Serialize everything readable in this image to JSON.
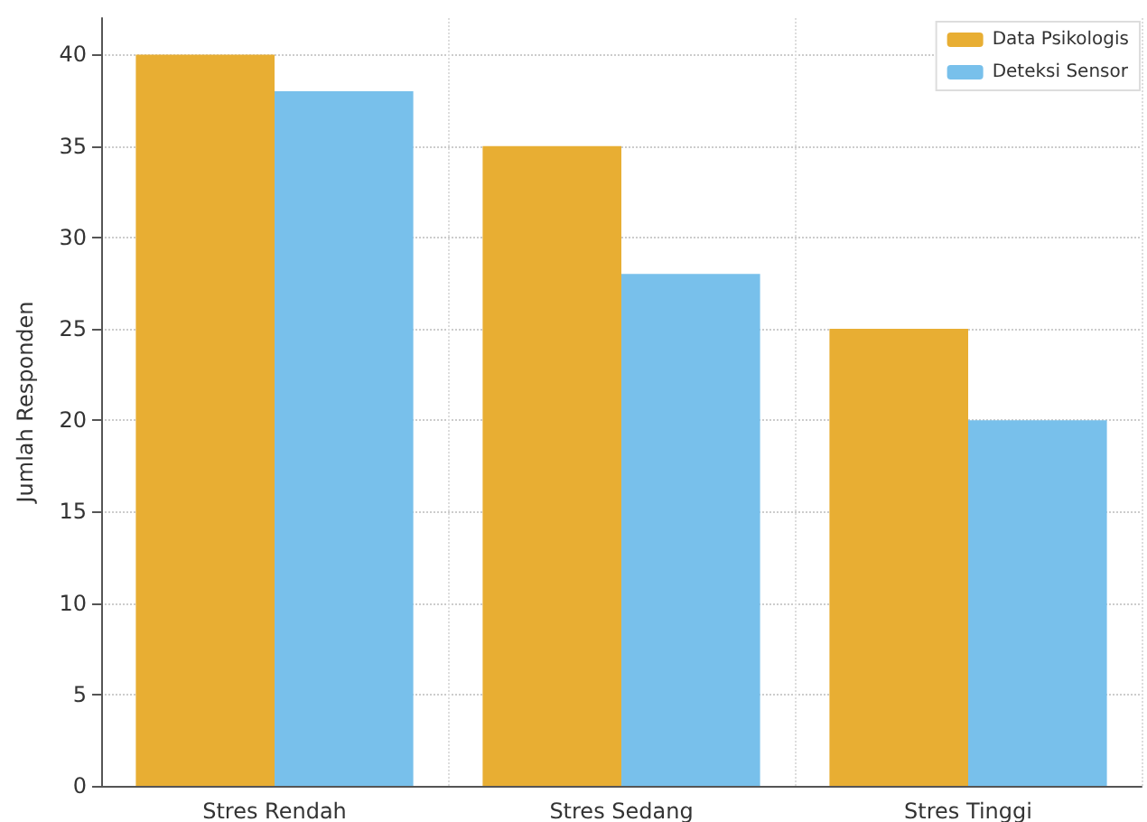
{
  "chart_data": {
    "type": "bar",
    "ylabel": "Jumlah Responden",
    "categories": [
      "Stres Rendah",
      "Stres Sedang",
      "Stres Tinggi"
    ],
    "series": [
      {
        "name": "Data Psikologis",
        "color": "#e8ae33",
        "values": [
          40,
          35,
          25
        ]
      },
      {
        "name": "Deteksi Sensor",
        "color": "#78c0eb",
        "values": [
          38,
          28,
          20
        ]
      }
    ],
    "ylim": [
      0,
      42
    ],
    "yticks": [
      0,
      5,
      10,
      15,
      20,
      25,
      30,
      35,
      40
    ],
    "grid": true,
    "legend": "top right"
  }
}
